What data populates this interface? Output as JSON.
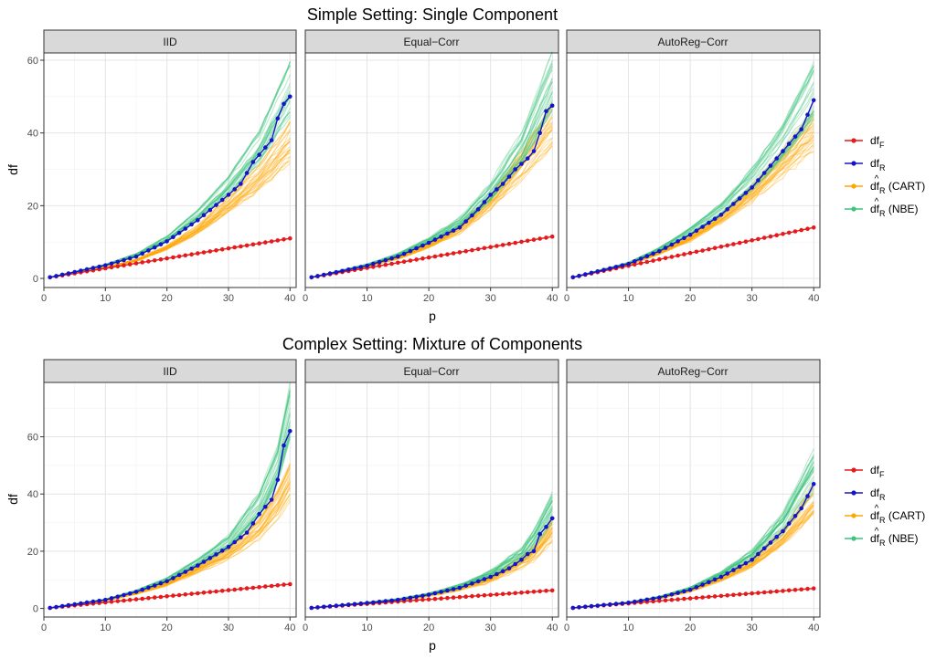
{
  "chart_data": [
    {
      "type": "line",
      "title": "Simple Setting: Single Component",
      "xlabel": "p",
      "ylabel": "df",
      "xlim": [
        0,
        41
      ],
      "ylim": [
        -2.5,
        62
      ],
      "xticks": [
        "0",
        "10",
        "20",
        "30",
        "40"
      ],
      "yticks": [
        "0",
        "20",
        "40",
        "60"
      ],
      "grid": true,
      "legend_position": "right",
      "legend": {
        "items": [
          {
            "main": "df",
            "sub": "F",
            "hat": false,
            "suffix": "",
            "color": "#e41a1c"
          },
          {
            "main": "df",
            "sub": "R",
            "hat": false,
            "suffix": "",
            "color": "#1515c8"
          },
          {
            "main": "df",
            "sub": "R",
            "hat": true,
            "suffix": " (CART)",
            "color": "#ffa500"
          },
          {
            "main": "df",
            "sub": "R",
            "hat": true,
            "suffix": " (NBE)",
            "color": "#3cc47c"
          }
        ]
      },
      "panels": [
        {
          "name": "IID",
          "series": {
            "df_F": [
              [
                1,
                0.3
              ],
              [
                40,
                11
              ]
            ],
            "df_R": [
              [
                1,
                0.3
              ],
              [
                10,
                3.6
              ],
              [
                15,
                6
              ],
              [
                20,
                10.2
              ],
              [
                25,
                16
              ],
              [
                30,
                23
              ],
              [
                32,
                26
              ],
              [
                34,
                32
              ],
              [
                35,
                34
              ],
              [
                37,
                38
              ],
              [
                38,
                44
              ],
              [
                39,
                48
              ],
              [
                40,
                50
              ]
            ],
            "df_R_hat_CART": [
              [
                1,
                0.3
              ],
              [
                10,
                3
              ],
              [
                15,
                5
              ],
              [
                20,
                8.5
              ],
              [
                25,
                13.5
              ],
              [
                30,
                20.5
              ],
              [
                35,
                28
              ],
              [
                40,
                38
              ]
            ],
            "df_R_hat_NBE": [
              [
                1,
                0.3
              ],
              [
                10,
                3.7
              ],
              [
                15,
                6.4
              ],
              [
                20,
                10.8
              ],
              [
                25,
                17.3
              ],
              [
                30,
                25.5
              ],
              [
                35,
                36
              ],
              [
                40,
                52
              ]
            ]
          }
        },
        {
          "name": "Equal−Corr",
          "series": {
            "df_F": [
              [
                1,
                0.3
              ],
              [
                40,
                11.5
              ]
            ],
            "df_R": [
              [
                1,
                0.3
              ],
              [
                10,
                3.5
              ],
              [
                15,
                6
              ],
              [
                20,
                9.8
              ],
              [
                25,
                14
              ],
              [
                28,
                19
              ],
              [
                30,
                23
              ],
              [
                32,
                26
              ],
              [
                34,
                30
              ],
              [
                36,
                33
              ],
              [
                37,
                35
              ],
              [
                38,
                40
              ],
              [
                39,
                46
              ],
              [
                40,
                47.5
              ]
            ],
            "df_R_hat_CART": [
              [
                1,
                0.3
              ],
              [
                10,
                3.3
              ],
              [
                15,
                5.6
              ],
              [
                20,
                9
              ],
              [
                25,
                13.5
              ],
              [
                30,
                21
              ],
              [
                35,
                31
              ],
              [
                40,
                42
              ]
            ],
            "df_R_hat_NBE": [
              [
                1,
                0.3
              ],
              [
                10,
                3.8
              ],
              [
                15,
                6.5
              ],
              [
                20,
                10.5
              ],
              [
                25,
                15.5
              ],
              [
                30,
                24
              ],
              [
                35,
                36
              ],
              [
                40,
                55
              ]
            ]
          }
        },
        {
          "name": "AutoReg−Corr",
          "series": {
            "df_F": [
              [
                1,
                0.3
              ],
              [
                40,
                14
              ]
            ],
            "df_R": [
              [
                1,
                0.3
              ],
              [
                10,
                4
              ],
              [
                15,
                7.5
              ],
              [
                20,
                12
              ],
              [
                25,
                17.5
              ],
              [
                30,
                25
              ],
              [
                35,
                35
              ],
              [
                38,
                41
              ],
              [
                40,
                49
              ]
            ],
            "df_R_hat_CART": [
              [
                1,
                0.3
              ],
              [
                10,
                3.8
              ],
              [
                15,
                7
              ],
              [
                20,
                11
              ],
              [
                25,
                16.5
              ],
              [
                30,
                23.5
              ],
              [
                35,
                32
              ],
              [
                40,
                41
              ]
            ],
            "df_R_hat_NBE": [
              [
                1,
                0.3
              ],
              [
                10,
                4.2
              ],
              [
                15,
                8
              ],
              [
                20,
                13
              ],
              [
                25,
                19
              ],
              [
                30,
                27.5
              ],
              [
                35,
                38
              ],
              [
                40,
                52
              ]
            ]
          }
        }
      ]
    },
    {
      "type": "line",
      "title": "Complex Setting: Mixture of Components",
      "xlabel": "p",
      "ylabel": "df",
      "xlim": [
        0,
        41
      ],
      "ylim": [
        -3,
        79
      ],
      "xticks": [
        "0",
        "10",
        "20",
        "30",
        "40"
      ],
      "yticks": [
        "0",
        "20",
        "40",
        "60"
      ],
      "grid": true,
      "legend_position": "right",
      "legend": {
        "items": [
          {
            "main": "df",
            "sub": "F",
            "hat": false,
            "suffix": "",
            "color": "#e41a1c"
          },
          {
            "main": "df",
            "sub": "R",
            "hat": false,
            "suffix": "",
            "color": "#1515c8"
          },
          {
            "main": "df",
            "sub": "R",
            "hat": true,
            "suffix": " (CART)",
            "color": "#ffa500"
          },
          {
            "main": "df",
            "sub": "R",
            "hat": true,
            "suffix": " (NBE)",
            "color": "#3cc47c"
          }
        ]
      },
      "panels": [
        {
          "name": "IID",
          "series": {
            "df_F": [
              [
                1,
                0.2
              ],
              [
                40,
                8.5
              ]
            ],
            "df_R": [
              [
                1,
                0.2
              ],
              [
                10,
                3
              ],
              [
                15,
                5.8
              ],
              [
                20,
                9.5
              ],
              [
                25,
                15
              ],
              [
                30,
                21.5
              ],
              [
                33,
                26.5
              ],
              [
                35,
                33
              ],
              [
                37,
                38
              ],
              [
                38,
                45
              ],
              [
                39,
                57
              ],
              [
                40,
                62
              ]
            ],
            "df_R_hat_CART": [
              [
                1,
                0.2
              ],
              [
                10,
                2.7
              ],
              [
                15,
                5.2
              ],
              [
                20,
                8.5
              ],
              [
                25,
                13.5
              ],
              [
                30,
                19
              ],
              [
                35,
                27.5
              ],
              [
                38,
                36
              ],
              [
                40,
                44
              ]
            ],
            "df_R_hat_NBE": [
              [
                1,
                0.2
              ],
              [
                10,
                3.1
              ],
              [
                15,
                6
              ],
              [
                20,
                10
              ],
              [
                25,
                16
              ],
              [
                30,
                23
              ],
              [
                35,
                36
              ],
              [
                38,
                50
              ],
              [
                40,
                68
              ]
            ]
          }
        },
        {
          "name": "Equal−Corr",
          "series": {
            "df_F": [
              [
                1,
                0.2
              ],
              [
                40,
                6.3
              ]
            ],
            "df_R": [
              [
                1,
                0.2
              ],
              [
                10,
                1.9
              ],
              [
                15,
                3
              ],
              [
                20,
                4.8
              ],
              [
                25,
                7.2
              ],
              [
                30,
                11
              ],
              [
                33,
                14
              ],
              [
                35,
                17
              ],
              [
                36,
                19
              ],
              [
                37,
                20
              ],
              [
                38,
                26
              ],
              [
                39,
                28.5
              ],
              [
                40,
                31.5
              ]
            ],
            "df_R_hat_CART": [
              [
                1,
                0.2
              ],
              [
                10,
                1.8
              ],
              [
                15,
                2.8
              ],
              [
                20,
                4.5
              ],
              [
                25,
                6.8
              ],
              [
                30,
                10.2
              ],
              [
                35,
                16
              ],
              [
                37,
                19
              ],
              [
                40,
                27
              ]
            ],
            "df_R_hat_NBE": [
              [
                1,
                0.2
              ],
              [
                10,
                2
              ],
              [
                15,
                3.2
              ],
              [
                20,
                5
              ],
              [
                25,
                7.6
              ],
              [
                30,
                12
              ],
              [
                35,
                18.5
              ],
              [
                37,
                24
              ],
              [
                40,
                35
              ]
            ]
          }
        },
        {
          "name": "AutoReg−Corr",
          "series": {
            "df_F": [
              [
                1,
                0.2
              ],
              [
                40,
                7
              ]
            ],
            "df_R": [
              [
                1,
                0.2
              ],
              [
                10,
                2
              ],
              [
                15,
                3.8
              ],
              [
                20,
                6.5
              ],
              [
                25,
                11
              ],
              [
                30,
                17
              ],
              [
                35,
                27
              ],
              [
                38,
                35
              ],
              [
                40,
                43.5
              ]
            ],
            "df_R_hat_CART": [
              [
                1,
                0.2
              ],
              [
                10,
                1.9
              ],
              [
                15,
                3.6
              ],
              [
                20,
                6.2
              ],
              [
                25,
                10.5
              ],
              [
                30,
                16
              ],
              [
                35,
                25
              ],
              [
                40,
                38
              ]
            ],
            "df_R_hat_NBE": [
              [
                1,
                0.2
              ],
              [
                10,
                2.1
              ],
              [
                15,
                4
              ],
              [
                20,
                7
              ],
              [
                25,
                11.8
              ],
              [
                30,
                18.5
              ],
              [
                35,
                30
              ],
              [
                40,
                48
              ]
            ]
          }
        }
      ]
    }
  ]
}
